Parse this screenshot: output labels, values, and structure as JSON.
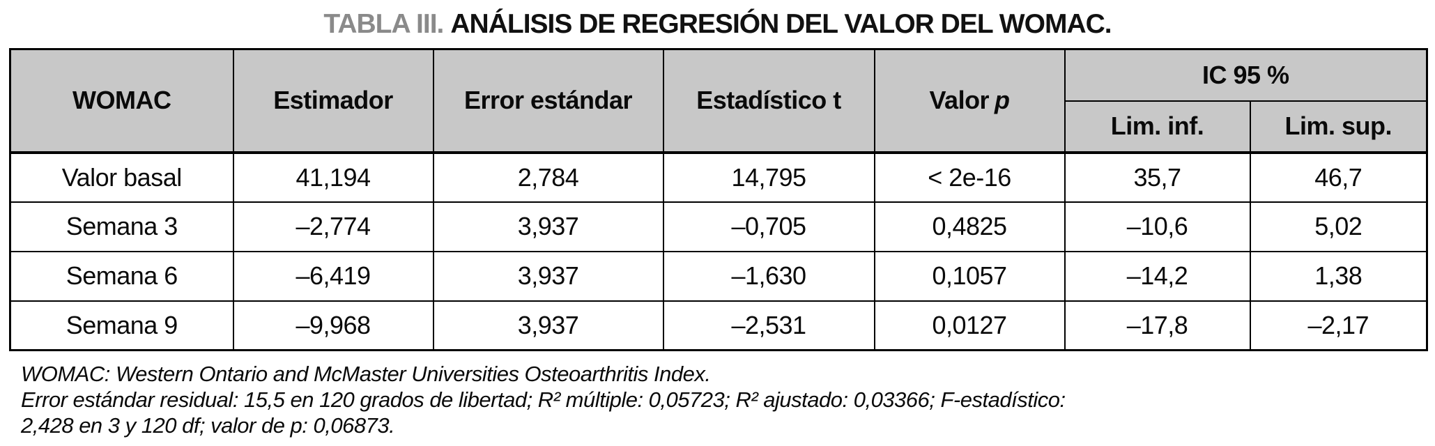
{
  "title": {
    "label": "TABLA III.",
    "text": "ANÁLISIS DE REGRESIÓN DEL VALOR DEL WOMAC."
  },
  "colors": {
    "header_bg": "#c8c8c8",
    "title_label_gray": "#8a8a8a",
    "border": "#000000"
  },
  "table": {
    "headers": {
      "womac": "WOMAC",
      "estimador": "Estimador",
      "error_estandar": "Error estándar",
      "estadistico_t": "Estadístico t",
      "valor_p_prefix": "Valor",
      "valor_p_italic": "p",
      "ic_95": "IC 95 %",
      "lim_inf": "Lim. inf.",
      "lim_sup": "Lim. sup."
    },
    "rows": [
      {
        "label": "Valor basal",
        "estimador": "41,194",
        "error_estandar": "2,784",
        "estadistico_t": "14,795",
        "valor_p": "< 2e-16",
        "lim_inf": "35,7",
        "lim_sup": "46,7"
      },
      {
        "label": "Semana 3",
        "estimador": "–2,774",
        "error_estandar": "3,937",
        "estadistico_t": "–0,705",
        "valor_p": "0,4825",
        "lim_inf": "–10,6",
        "lim_sup": "5,02"
      },
      {
        "label": "Semana 6",
        "estimador": "–6,419",
        "error_estandar": "3,937",
        "estadistico_t": "–1,630",
        "valor_p": "0,1057",
        "lim_inf": "–14,2",
        "lim_sup": "1,38"
      },
      {
        "label": "Semana 9",
        "estimador": "–9,968",
        "error_estandar": "3,937",
        "estadistico_t": "–2,531",
        "valor_p": "0,0127",
        "lim_inf": "–17,8",
        "lim_sup": "–2,17"
      }
    ]
  },
  "footnotes": {
    "line1": "WOMAC: Western Ontario and McMaster Universities Osteoarthritis Index.",
    "line2": "Error estándar residual: 15,5 en 120 grados de libertad; R² múltiple: 0,05723; R² ajustado: 0,03366; F-estadístico:",
    "line3": "2,428 en 3 y 120 df; valor de p: 0,06873."
  }
}
